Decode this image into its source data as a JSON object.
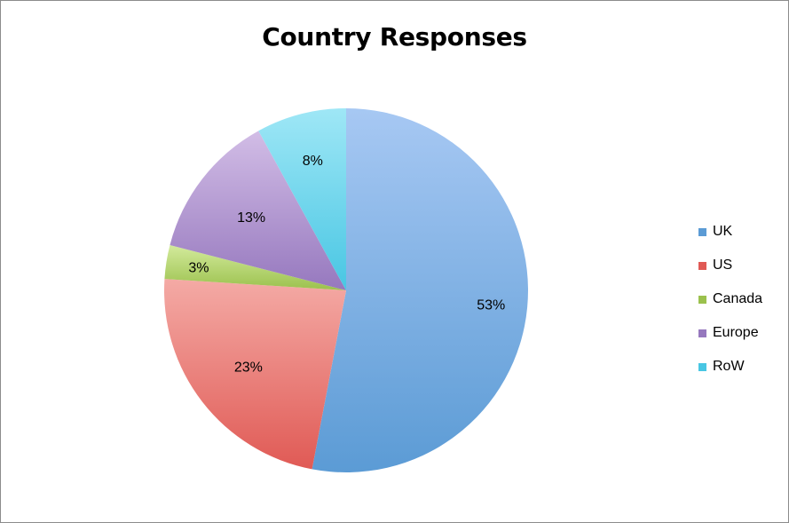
{
  "chart_data": {
    "type": "pie",
    "title": "Country Responses",
    "categories": [
      "UK",
      "US",
      "Canada",
      "Europe",
      "RoW"
    ],
    "values": [
      53,
      23,
      3,
      13,
      8
    ],
    "labels": [
      "53%",
      "23%",
      "3%",
      "13%",
      "8%"
    ],
    "colors": [
      "#5b9bd5",
      "#e05a55",
      "#9bc14d",
      "#9678be",
      "#48c6e3"
    ],
    "colors_light": [
      "#a7c8f3",
      "#f4aaa5",
      "#d3ea9c",
      "#d2bde6",
      "#9fe7f6"
    ],
    "legend_position": "right",
    "start_angle": "12 o'clock",
    "direction": "clockwise"
  }
}
